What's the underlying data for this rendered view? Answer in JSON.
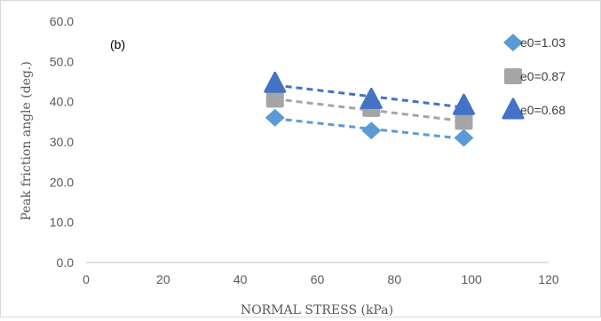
{
  "chart_data": {
    "type": "scatter",
    "annotation": "(b)",
    "xlabel": "NORMAL STRESS (kPa)",
    "ylabel": "Peak friction angle (deg.)",
    "xlim": [
      0,
      120
    ],
    "ylim": [
      0,
      60
    ],
    "x_ticks": [
      0,
      20,
      40,
      60,
      80,
      100,
      120
    ],
    "x_tick_labels": [
      "0",
      "20",
      "40",
      "60",
      "80",
      "100",
      "120"
    ],
    "y_ticks": [
      0,
      10,
      20,
      30,
      40,
      50,
      60
    ],
    "y_tick_labels": [
      "0.0",
      "10.0",
      "20.0",
      "30.0",
      "40.0",
      "50.0",
      "60.0"
    ],
    "grid": false,
    "legend_position": "right",
    "series": [
      {
        "name": "e0=1.03",
        "marker": "diamond",
        "color": "#5b9bd5",
        "x": [
          49,
          74,
          98
        ],
        "y": [
          36.0,
          32.8,
          31.0
        ],
        "trendline": true
      },
      {
        "name": "e0=0.87",
        "marker": "square",
        "color": "#a5a5a5",
        "x": [
          49,
          74,
          98
        ],
        "y": [
          40.5,
          38.2,
          35.0
        ],
        "trendline": true
      },
      {
        "name": "e0=0.68",
        "marker": "triangle",
        "color": "#4472c4",
        "x": [
          49,
          74,
          98
        ],
        "y": [
          44.5,
          40.5,
          39.0
        ],
        "trendline": true
      }
    ]
  }
}
